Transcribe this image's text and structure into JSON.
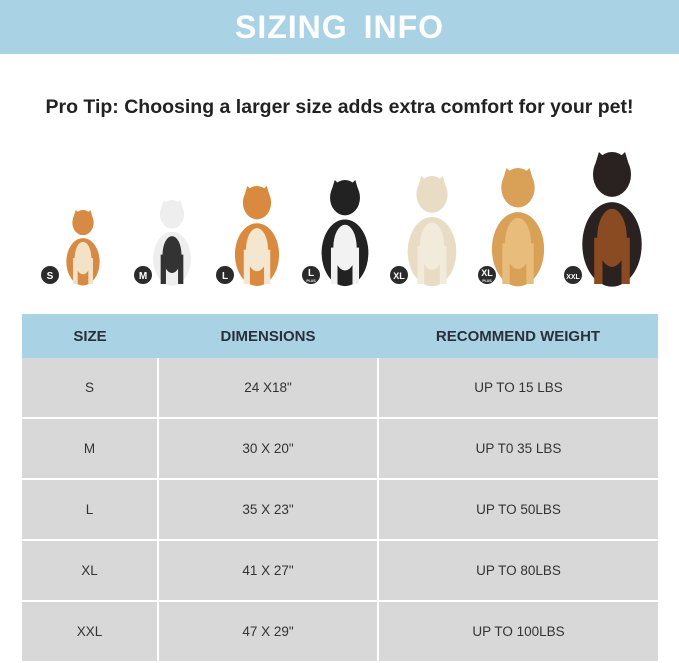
{
  "title": "SIZING INFO",
  "tip": "Pro Tip: Choosing a larger size adds extra comfort for your pet!",
  "colors": {
    "banner": "#a9d3e5",
    "row": "#d8d8d8",
    "badge": "#2b2b2b"
  },
  "dogs": [
    {
      "badge": "S",
      "sub": "",
      "breed_icon": "pomeranian-image"
    },
    {
      "badge": "M",
      "sub": "",
      "breed_icon": "french-bulldog-image"
    },
    {
      "badge": "L",
      "sub": "",
      "breed_icon": "shiba-inu-image"
    },
    {
      "badge": "L",
      "sub": "PLUS",
      "breed_icon": "border-collie-image"
    },
    {
      "badge": "XL",
      "sub": "",
      "breed_icon": "labrador-image"
    },
    {
      "badge": "XL",
      "sub": "PLUS",
      "breed_icon": "golden-retriever-image"
    },
    {
      "badge": "XXL",
      "sub": "",
      "breed_icon": "doberman-image"
    }
  ],
  "table": {
    "headers": [
      "SIZE",
      "DIMENSIONS",
      "RECOMMEND WEIGHT"
    ],
    "rows": [
      [
        "S",
        "24 X18\"",
        "UP TO 15 LBS"
      ],
      [
        "M",
        "30 X 20\"",
        "UP T0 35 LBS"
      ],
      [
        "L",
        "35 X 23\"",
        "UP TO 50LBS"
      ],
      [
        "XL",
        "41 X 27\"",
        "UP TO 80LBS"
      ],
      [
        "XXL",
        "47 X 29\"",
        "UP TO 100LBS"
      ]
    ]
  }
}
